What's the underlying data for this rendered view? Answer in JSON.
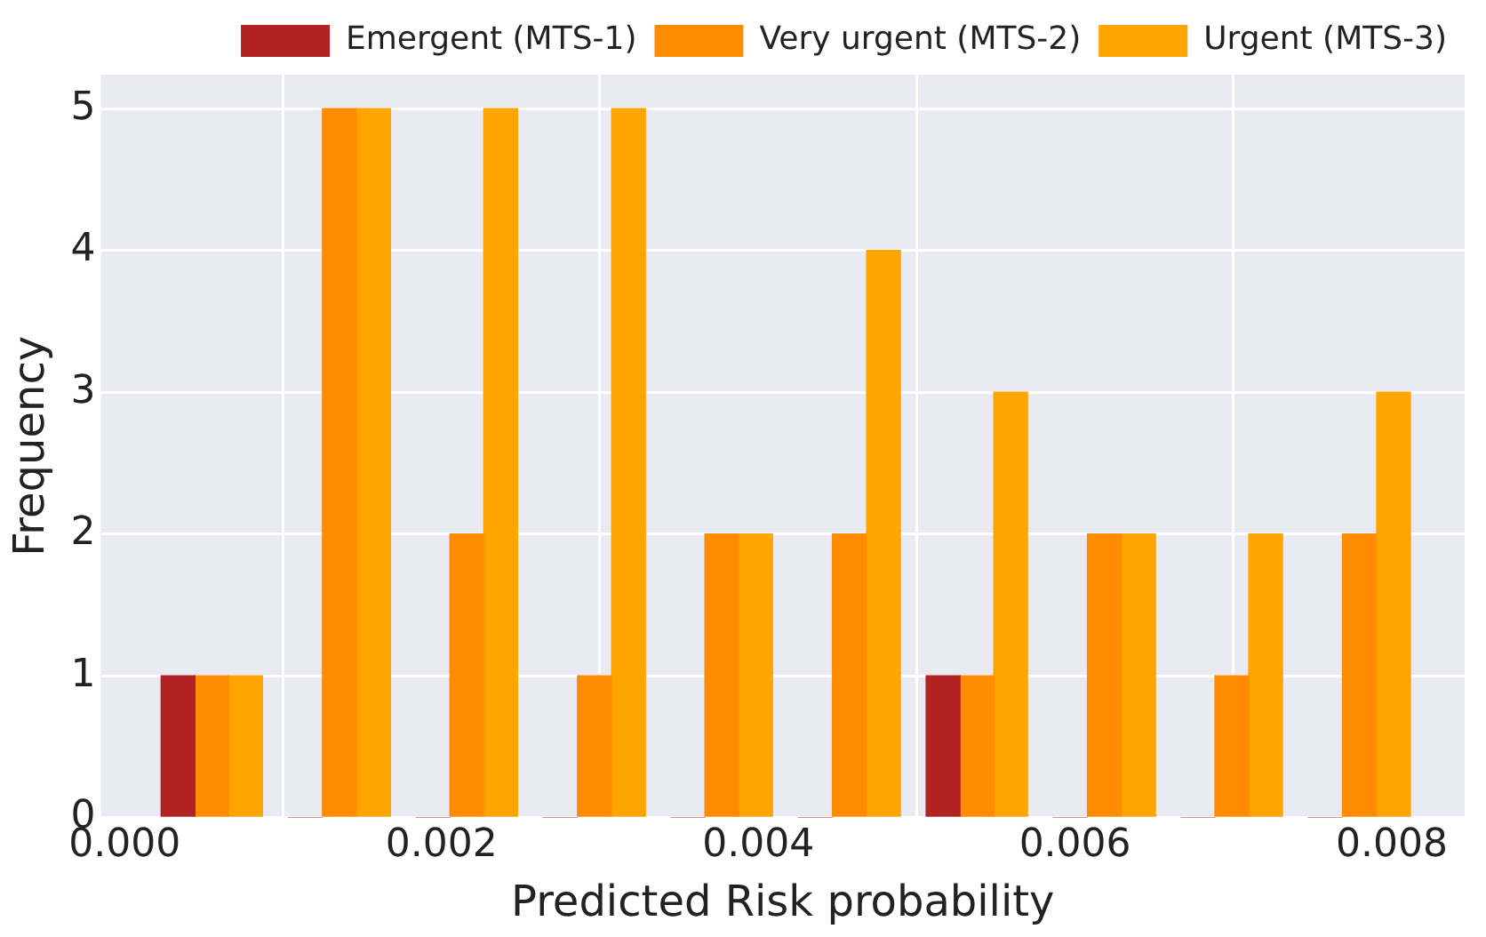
{
  "chart_data": {
    "type": "histogram",
    "xlabel": "Predicted Risk probability",
    "ylabel": "Frequency",
    "bins": [
      0.00015,
      0.00095,
      0.00176,
      0.00256,
      0.00337,
      0.00417,
      0.00498,
      0.00578,
      0.00659,
      0.00739,
      0.0082
    ],
    "series": [
      {
        "name": "Emergent (MTS-1)",
        "color": "#b22222",
        "values": [
          1,
          0,
          0,
          0,
          0,
          0,
          1,
          0,
          0,
          0
        ]
      },
      {
        "name": "Very urgent (MTS-2)",
        "color": "#ff8c00",
        "values": [
          1,
          5,
          2,
          1,
          2,
          2,
          1,
          2,
          1,
          2
        ]
      },
      {
        "name": "Urgent (MTS-3)",
        "color": "#ffa500",
        "values": [
          1,
          5,
          5,
          5,
          2,
          4,
          3,
          2,
          2,
          3
        ]
      }
    ],
    "xlim": [
      -0.00015,
      0.00846
    ],
    "xticks": [
      {
        "value": 0,
        "label": "0.000"
      },
      {
        "value": 0.002,
        "label": "0.002"
      },
      {
        "value": 0.004,
        "label": "0.004"
      },
      {
        "value": 0.006,
        "label": "0.006"
      },
      {
        "value": 0.008,
        "label": "0.008"
      }
    ],
    "ylim": [
      0,
      5.24
    ],
    "yticks": [
      0,
      1,
      2,
      3,
      4,
      5
    ],
    "grid": true,
    "legend": "top right"
  }
}
